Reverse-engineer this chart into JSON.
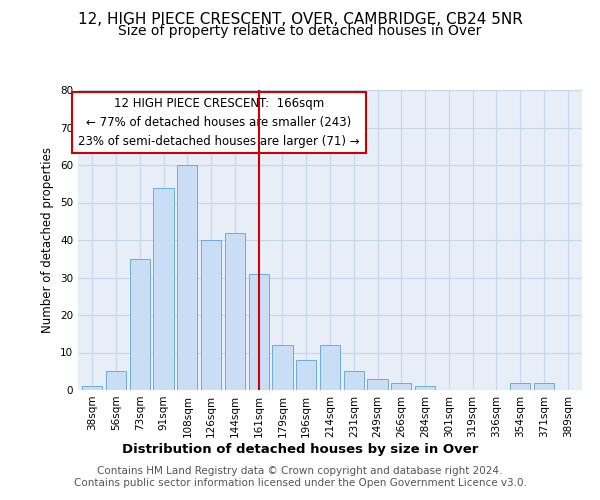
{
  "title": "12, HIGH PIECE CRESCENT, OVER, CAMBRIDGE, CB24 5NR",
  "subtitle": "Size of property relative to detached houses in Over",
  "xlabel": "Distribution of detached houses by size in Over",
  "ylabel": "Number of detached properties",
  "bar_labels": [
    "38sqm",
    "56sqm",
    "73sqm",
    "91sqm",
    "108sqm",
    "126sqm",
    "144sqm",
    "161sqm",
    "179sqm",
    "196sqm",
    "214sqm",
    "231sqm",
    "249sqm",
    "266sqm",
    "284sqm",
    "301sqm",
    "319sqm",
    "336sqm",
    "354sqm",
    "371sqm",
    "389sqm"
  ],
  "bar_values": [
    1,
    5,
    35,
    54,
    60,
    40,
    42,
    31,
    12,
    8,
    12,
    5,
    3,
    2,
    1,
    0,
    0,
    0,
    2,
    2,
    0
  ],
  "bar_color": "#c9ddf5",
  "bar_edge_color": "#6baed6",
  "vline_x": 7,
  "vline_color": "#cc0000",
  "annotation_text": "12 HIGH PIECE CRESCENT:  166sqm\n← 77% of detached houses are smaller (243)\n23% of semi-detached houses are larger (71) →",
  "annotation_box_color": "#ffffff",
  "annotation_box_edge_color": "#cc0000",
  "ylim": [
    0,
    80
  ],
  "yticks": [
    0,
    10,
    20,
    30,
    40,
    50,
    60,
    70,
    80
  ],
  "grid_color": "#c8d4e8",
  "background_color": "#e8eef8",
  "footer_text": "Contains HM Land Registry data © Crown copyright and database right 2024.\nContains public sector information licensed under the Open Government Licence v3.0.",
  "title_fontsize": 11,
  "subtitle_fontsize": 10,
  "xlabel_fontsize": 9.5,
  "ylabel_fontsize": 8.5,
  "tick_fontsize": 7.5,
  "annotation_fontsize": 8.5,
  "footer_fontsize": 7.5
}
